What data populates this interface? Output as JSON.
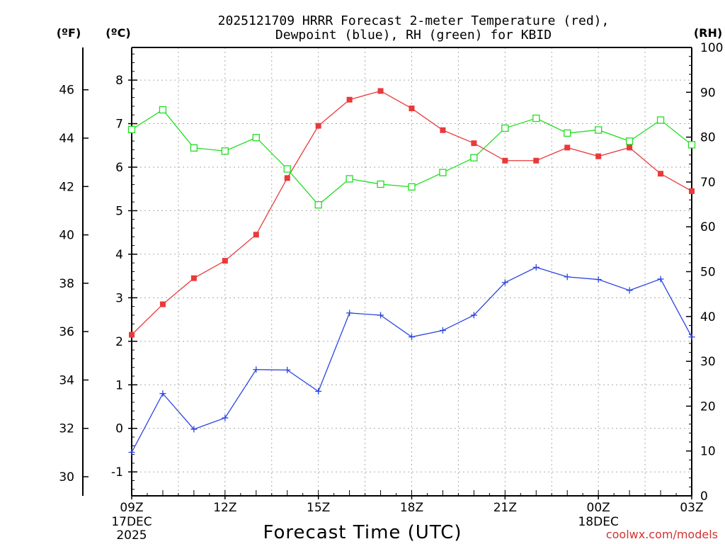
{
  "chart_data": {
    "type": "line",
    "title_line1": "2025121709 HRRR Forecast 2-meter Temperature (red),",
    "title_line2": "Dewpoint (blue), RH (green) for KBID",
    "xlabel": "Forecast Time (UTC)",
    "credit": "coolwx.com/models",
    "unit_labels": {
      "fahrenheit": "(ºF)",
      "celsius": "(ºC)",
      "rh": "(RH)"
    },
    "x_hours": [
      0,
      1,
      2,
      3,
      4,
      5,
      6,
      7,
      8,
      9,
      10,
      11,
      12,
      13,
      14,
      15,
      16,
      17,
      18
    ],
    "xlim": [
      0,
      18
    ],
    "x_ticks": [
      {
        "hour": 0,
        "label": "09Z",
        "sub1": "17DEC",
        "sub2": "2025"
      },
      {
        "hour": 3,
        "label": "12Z",
        "sub1": "",
        "sub2": ""
      },
      {
        "hour": 6,
        "label": "15Z",
        "sub1": "",
        "sub2": ""
      },
      {
        "hour": 9,
        "label": "18Z",
        "sub1": "",
        "sub2": ""
      },
      {
        "hour": 12,
        "label": "21Z",
        "sub1": "",
        "sub2": ""
      },
      {
        "hour": 15,
        "label": "00Z",
        "sub1": "18DEC",
        "sub2": ""
      },
      {
        "hour": 18,
        "label": "03Z",
        "sub1": "",
        "sub2": ""
      }
    ],
    "celsius_axis": {
      "ylim": [
        -1.55,
        8.75
      ],
      "ticks": [
        "-1",
        "0",
        "1",
        "2",
        "3",
        "4",
        "5",
        "6",
        "7",
        "8"
      ]
    },
    "fahrenheit_axis": {
      "ticks": [
        "30",
        "32",
        "34",
        "36",
        "38",
        "40",
        "42",
        "44",
        "46"
      ]
    },
    "rh_axis": {
      "ylim": [
        0,
        100
      ],
      "ticks": [
        "0",
        "10",
        "20",
        "30",
        "40",
        "50",
        "60",
        "70",
        "80",
        "90",
        "100"
      ]
    },
    "series": [
      {
        "name": "Temperature",
        "axis": "celsius",
        "color": "#e83a3a",
        "marker": "filled-square",
        "values": [
          2.15,
          2.85,
          3.45,
          3.85,
          4.45,
          5.75,
          6.95,
          7.55,
          7.75,
          7.35,
          6.85,
          6.55,
          6.15,
          6.15,
          6.45,
          6.25,
          6.45,
          5.85,
          5.45
        ]
      },
      {
        "name": "Dewpoint",
        "axis": "celsius",
        "color": "#2a44e0",
        "marker": "plus",
        "values": [
          -0.55,
          0.8,
          -0.02,
          0.24,
          1.35,
          1.34,
          0.85,
          2.65,
          2.6,
          2.1,
          2.25,
          2.6,
          3.35,
          3.7,
          3.48,
          3.42,
          3.17,
          3.43,
          2.1
        ]
      },
      {
        "name": "RH",
        "axis": "rh",
        "color": "#22dd22",
        "marker": "open-square",
        "values": [
          81.7,
          86.1,
          77.6,
          76.9,
          79.9,
          72.9,
          64.9,
          70.7,
          69.5,
          68.9,
          72.1,
          75.4,
          82.0,
          84.2,
          80.9,
          81.6,
          79.1,
          83.8,
          78.3
        ]
      }
    ]
  }
}
